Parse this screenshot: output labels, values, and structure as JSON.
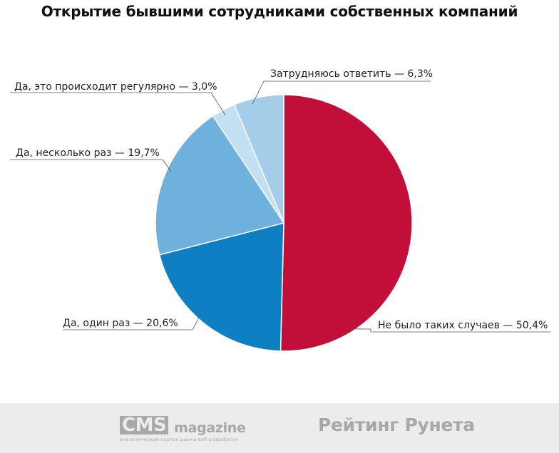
{
  "chart_data": {
    "type": "pie",
    "title": "Открытие бывшими сотрудниками собственных компаний",
    "slices": [
      {
        "label": "Не было таких случаев — 50,4%",
        "value": 50.4,
        "color": "#c20f3a"
      },
      {
        "label": "Да, один раз — 20,6%",
        "value": 20.6,
        "color": "#0e7fc2"
      },
      {
        "label": "Да, несколько раз — 19,7%",
        "value": 19.7,
        "color": "#6db1dc"
      },
      {
        "label": "Да, это происходит регулярно — 3,0%",
        "value": 3.0,
        "color": "#c3e0f2"
      },
      {
        "label": "Затрудняюсь ответить — 6,3%",
        "value": 6.3,
        "color": "#a3cde9"
      }
    ],
    "start": "12 o'clock",
    "direction": "clockwise"
  },
  "footer": {
    "cms_logo_box": "CMS",
    "cms_logo_word": "magazine",
    "cms_tagline": "аналитический портал рынка веб-разработок",
    "runet_logo": "Рейтинг Рунета"
  }
}
